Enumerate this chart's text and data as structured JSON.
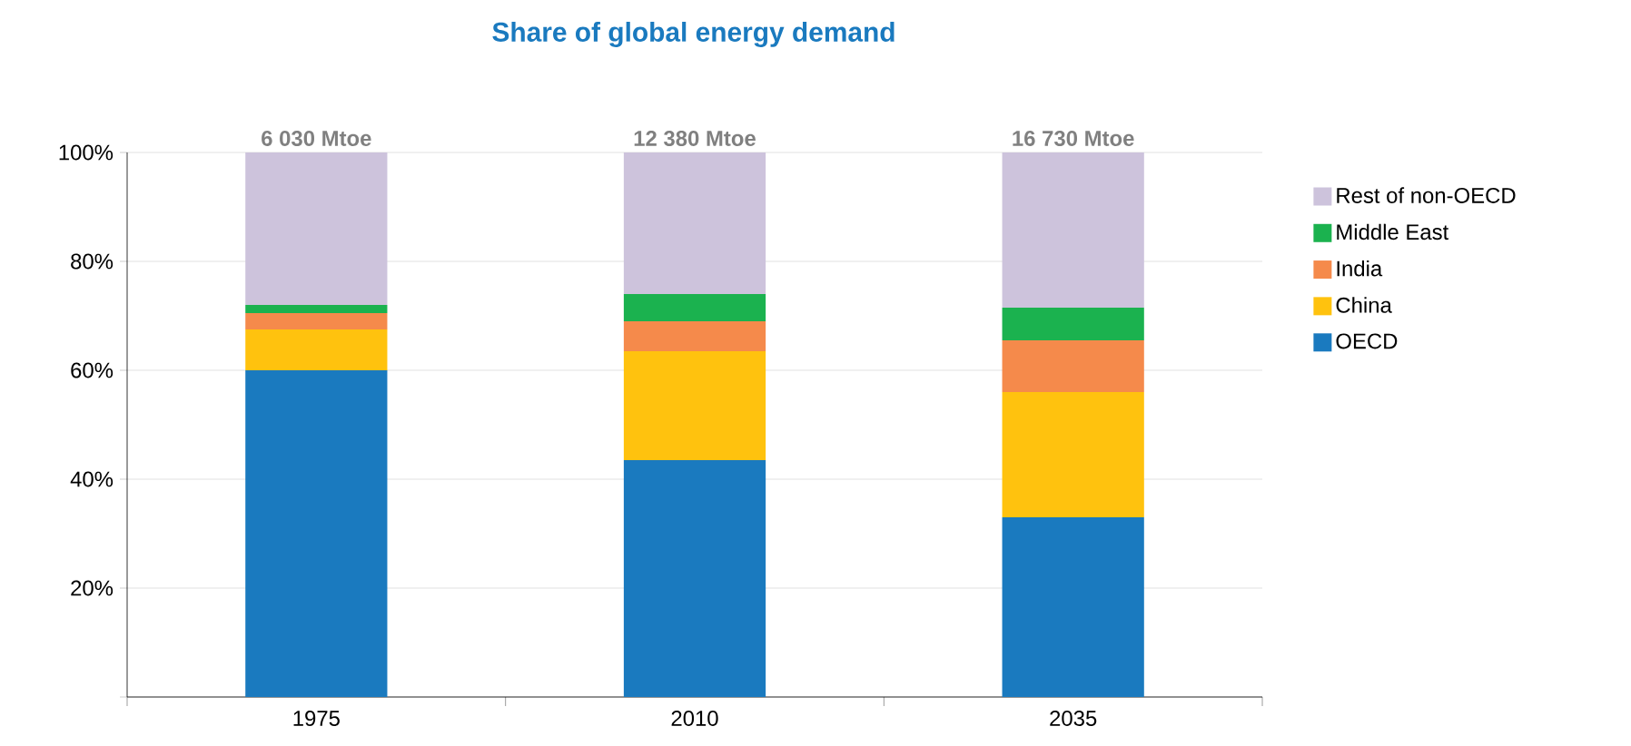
{
  "chart_data": {
    "type": "bar",
    "title": "Share of global energy demand",
    "stacked": true,
    "categories": [
      "1975",
      "2010",
      "2035"
    ],
    "series": [
      {
        "name": "OECD",
        "color": "#1a7abf",
        "values": [
          60,
          43.5,
          33
        ]
      },
      {
        "name": "China",
        "color": "#ffc20e",
        "values": [
          7.5,
          20,
          23
        ]
      },
      {
        "name": "India",
        "color": "#f58a4b",
        "values": [
          3,
          5.5,
          9.5
        ]
      },
      {
        "name": "Middle East",
        "color": "#1bb24f",
        "values": [
          1.5,
          5,
          6
        ]
      },
      {
        "name": "Rest of non-OECD",
        "color": "#cdc3dc",
        "values": [
          28,
          26,
          28.5
        ]
      }
    ],
    "annotations": [
      {
        "text": "6 030 Mtoe",
        "x": "1975",
        "y": 100
      },
      {
        "text": "12 380 Mtoe",
        "x": "2010",
        "y": 100
      },
      {
        "text": "16 730 Mtoe",
        "x": "2035",
        "y": 100
      }
    ],
    "ylim": [
      0,
      100
    ],
    "yticks": [
      {
        "value": 0,
        "label": null
      },
      {
        "value": 20,
        "label": "20%"
      },
      {
        "value": 40,
        "label": "40%"
      },
      {
        "value": 60,
        "label": "60%"
      },
      {
        "value": 80,
        "label": "80%"
      },
      {
        "value": 100,
        "label": "100%"
      }
    ],
    "grid": "y",
    "legend": "right"
  }
}
